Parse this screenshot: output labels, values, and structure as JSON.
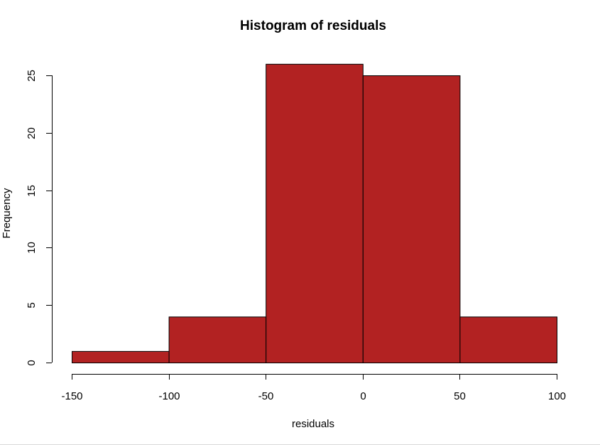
{
  "chart_data": {
    "type": "bar",
    "title": "Histogram of residuals",
    "xlabel": "residuals",
    "ylabel": "Frequency",
    "bins": [
      {
        "from": -150,
        "to": -100,
        "count": 1
      },
      {
        "from": -100,
        "to": -50,
        "count": 4
      },
      {
        "from": -50,
        "to": 0,
        "count": 26
      },
      {
        "from": 0,
        "to": 50,
        "count": 25
      },
      {
        "from": 50,
        "to": 100,
        "count": 4
      }
    ],
    "xlim": [
      -150,
      100
    ],
    "ylim": [
      0,
      25
    ],
    "xticks": [
      -150,
      -100,
      -50,
      0,
      50,
      100
    ],
    "yticks": [
      0,
      5,
      10,
      15,
      20,
      25
    ],
    "bar_color": "#b22222",
    "grid": false
  }
}
